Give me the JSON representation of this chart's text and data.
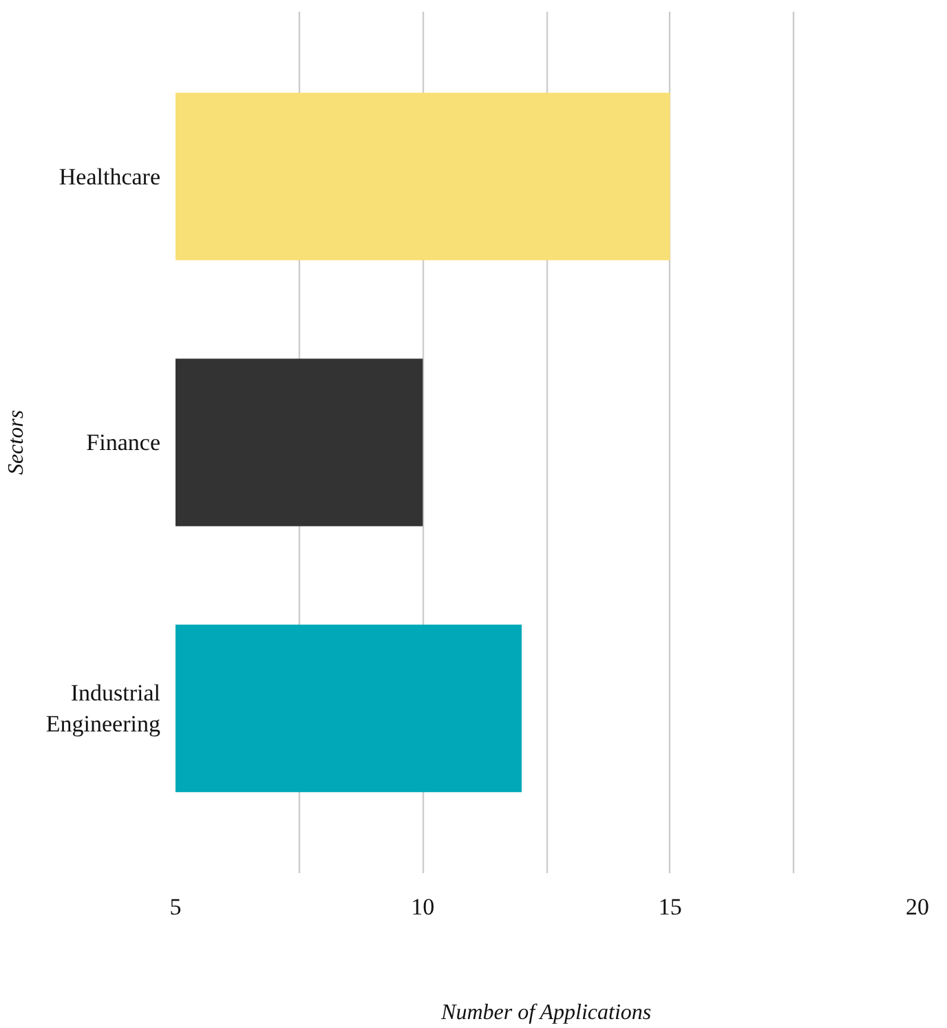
{
  "chart_data": {
    "type": "bar",
    "orientation": "horizontal",
    "categories": [
      "Healthcare",
      "Finance",
      "Industrial Engineering"
    ],
    "values": [
      15,
      10,
      12
    ],
    "colors": [
      "#f8e076",
      "#333333",
      "#00a8b8"
    ],
    "xlabel": "Number of Applications",
    "ylabel": "Sectors",
    "xlim": [
      5,
      20
    ],
    "xticks": [
      5,
      {
        "value": 7.5,
        "label": null
      },
      10,
      {
        "value": 12.5,
        "label": null
      },
      15,
      {
        "value": 17.5,
        "label": null
      },
      20
    ],
    "grid": "x"
  }
}
